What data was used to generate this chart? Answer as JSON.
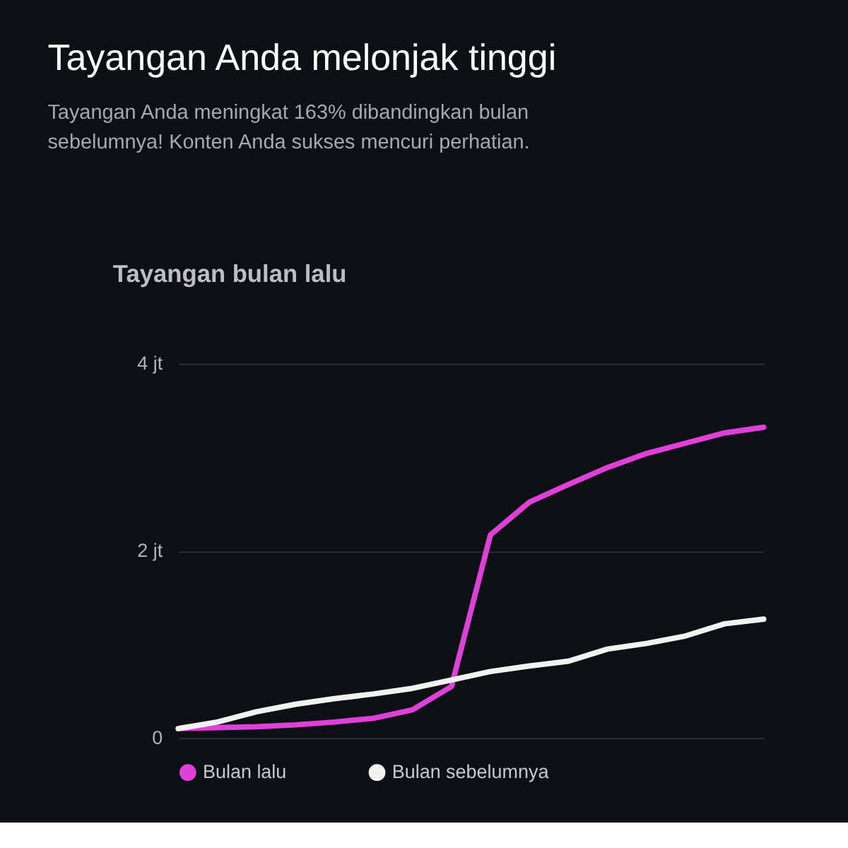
{
  "chart_data": {
    "type": "line",
    "title": "Tayangan Anda melonjak tinggi",
    "subtitle": "Tayangan Anda meningkat 163% dibandingkan bulan sebelumnya! Konten Anda sukses mencuri perhatian.",
    "annotations": [
      "Tayangan bulan lalu"
    ],
    "categories": [
      null,
      null,
      null,
      null,
      null,
      null,
      null,
      null,
      null,
      null,
      null,
      null,
      null,
      null,
      null,
      null
    ],
    "series": [
      {
        "name": "Bulan lalu",
        "color": "#e03fd8",
        "values": [
          0.1,
          0.11,
          0.12,
          0.14,
          0.17,
          0.21,
          0.3,
          0.55,
          2.17,
          2.52,
          2.71,
          2.89,
          3.04,
          3.15,
          3.26,
          3.32
        ]
      },
      {
        "name": "Bulan sebelumnya",
        "color": "#f2f2f2",
        "values": [
          0.1,
          0.17,
          0.28,
          0.36,
          0.42,
          0.47,
          0.53,
          0.62,
          0.71,
          0.77,
          0.82,
          0.95,
          1.01,
          1.09,
          1.22,
          1.27
        ]
      }
    ],
    "ylim": [
      0,
      4
    ],
    "yticks": [
      0,
      {
        "value": 2,
        "label": "2 jt"
      },
      {
        "value": 4,
        "label": "4 jt"
      }
    ],
    "grid": "y",
    "legend": "bottom",
    "tick_labels": "y",
    "marker": "none",
    "line_style": "solid"
  }
}
